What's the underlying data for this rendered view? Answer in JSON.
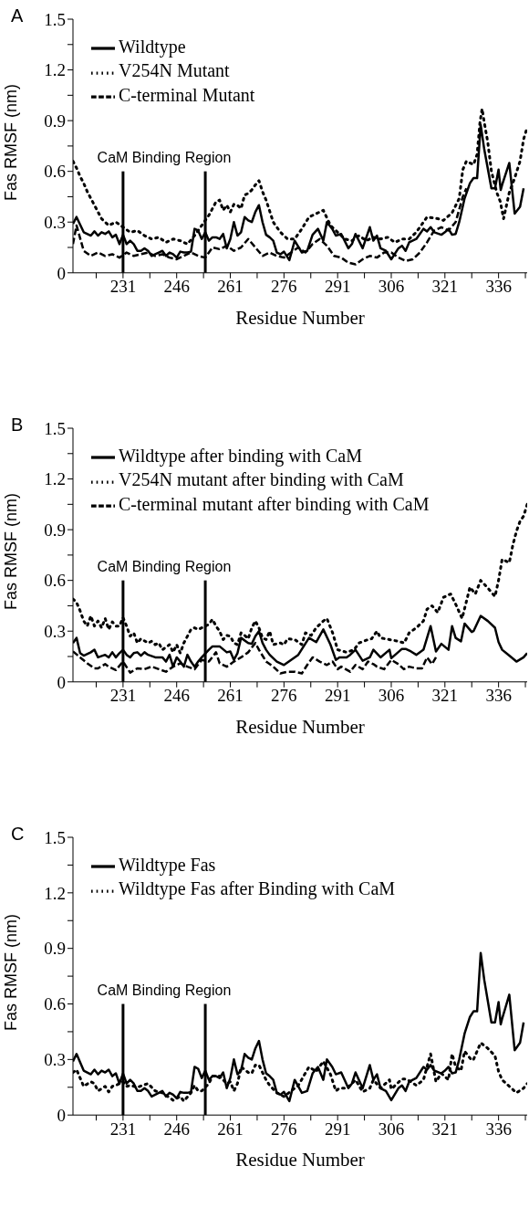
{
  "chart_data": [
    {
      "type": "line",
      "title": "A",
      "xlabel": "Residue Number",
      "ylabel": "Fas RMSF (nm)",
      "xlim": [
        217,
        344
      ],
      "ylim": [
        0,
        1.5
      ],
      "xticks": [
        {
          "value": 223.5,
          "label": null
        },
        231,
        {
          "value": 238.5,
          "label": null
        },
        246,
        {
          "value": 253.5,
          "label": null
        },
        261,
        {
          "value": 268.5,
          "label": null
        },
        276,
        {
          "value": 283.5,
          "label": null
        },
        291,
        {
          "value": 298.5,
          "label": null
        },
        306,
        {
          "value": 313.5,
          "label": null
        },
        321,
        {
          "value": 328.5,
          "label": null
        },
        336,
        {
          "value": 343.5,
          "label": null
        }
      ],
      "yticks": [
        0,
        {
          "value": 0.15,
          "label": null
        },
        0.3,
        {
          "value": 0.45,
          "label": null
        },
        0.6,
        {
          "value": 0.75,
          "label": null
        },
        0.9,
        {
          "value": 1.05,
          "label": null
        },
        1.2,
        {
          "value": 1.35,
          "label": null
        },
        1.5
      ],
      "legend": "top left",
      "grid": false,
      "marker": "none",
      "ref_lines": [
        {
          "axis": "x",
          "value": 231,
          "color": "#000000"
        },
        {
          "axis": "x",
          "value": 254,
          "color": "#000000"
        }
      ],
      "annotations": [
        "CaM Binding Region"
      ],
      "series": [
        {
          "name": "Wildtype",
          "color": "#000000",
          "line_style": "solid",
          "x": [
            217,
            218,
            220,
            222,
            223,
            224,
            225,
            226,
            227,
            228,
            229,
            230,
            231,
            232,
            233,
            234,
            235,
            236,
            237,
            238,
            239,
            240,
            241,
            242,
            243,
            244,
            245,
            246,
            247,
            248,
            249,
            250,
            251,
            252,
            253,
            254,
            255,
            256,
            257,
            258,
            259,
            260,
            261,
            262,
            263,
            264,
            265,
            266,
            267,
            268,
            269,
            270,
            271,
            272,
            273,
            274,
            275,
            276,
            277.5,
            279,
            281,
            282.5,
            284,
            285.5,
            287,
            288,
            289.5,
            290.5,
            292,
            294,
            295,
            296,
            298,
            300,
            301,
            302,
            303,
            304.5,
            306,
            308,
            309,
            310,
            311,
            313,
            315,
            316,
            317,
            318,
            320,
            321,
            322,
            323,
            324,
            325,
            326.5,
            328,
            329,
            330,
            331,
            332,
            334,
            335,
            336,
            336.6,
            337,
            339,
            340.5,
            342,
            343
          ],
          "values": [
            0.29,
            0.33,
            0.24,
            0.22,
            0.245,
            0.22,
            0.24,
            0.23,
            0.245,
            0.21,
            0.225,
            0.17,
            0.225,
            0.17,
            0.19,
            0.17,
            0.13,
            0.13,
            0.145,
            0.13,
            0.1,
            0.11,
            0.12,
            0.13,
            0.1,
            0.12,
            0.11,
            0.09,
            0.125,
            0.12,
            0.12,
            0.125,
            0.26,
            0.25,
            0.2,
            0.24,
            0.19,
            0.21,
            0.21,
            0.2,
            0.23,
            0.145,
            0.2,
            0.3,
            0.22,
            0.24,
            0.33,
            0.31,
            0.3,
            0.36,
            0.4,
            0.3,
            0.225,
            0.21,
            0.19,
            0.12,
            0.11,
            0.125,
            0.075,
            0.19,
            0.12,
            0.13,
            0.225,
            0.26,
            0.19,
            0.3,
            0.26,
            0.22,
            0.23,
            0.145,
            0.17,
            0.23,
            0.145,
            0.27,
            0.19,
            0.22,
            0.145,
            0.13,
            0.08,
            0.145,
            0.16,
            0.13,
            0.18,
            0.2,
            0.26,
            0.245,
            0.27,
            0.24,
            0.225,
            0.24,
            0.26,
            0.225,
            0.23,
            0.3,
            0.44,
            0.53,
            0.56,
            0.56,
            0.875,
            0.73,
            0.5,
            0.5,
            0.61,
            0.49,
            0.52,
            0.65,
            0.35,
            0.39,
            0.5
          ]
        },
        {
          "name": "V254N Mutant",
          "color": "#000000",
          "line_style": "dotted",
          "x": [
            217,
            218,
            219,
            220,
            221,
            222,
            223,
            224,
            225,
            227,
            229,
            231,
            233,
            235,
            237,
            239,
            241,
            243,
            245,
            247,
            249,
            251,
            253,
            255,
            256,
            257,
            258,
            259,
            260,
            261,
            262,
            263,
            264,
            265,
            266,
            267,
            268,
            269,
            270,
            271,
            273,
            275,
            277,
            279,
            281,
            283,
            285,
            287,
            289,
            291,
            293,
            295,
            297,
            299,
            301,
            303,
            305,
            307,
            309,
            311,
            313,
            316,
            319,
            320.6,
            323,
            325,
            326,
            327,
            329,
            330,
            330.8,
            331.4,
            332,
            333,
            334,
            335.5,
            336.5,
            337.4,
            339,
            340.5,
            342,
            343,
            344
          ],
          "values": [
            0.66,
            0.62,
            0.57,
            0.53,
            0.48,
            0.44,
            0.4,
            0.36,
            0.32,
            0.28,
            0.3,
            0.27,
            0.24,
            0.25,
            0.22,
            0.2,
            0.21,
            0.18,
            0.2,
            0.19,
            0.17,
            0.22,
            0.28,
            0.34,
            0.38,
            0.42,
            0.43,
            0.37,
            0.4,
            0.36,
            0.405,
            0.4,
            0.38,
            0.46,
            0.47,
            0.49,
            0.52,
            0.545,
            0.48,
            0.43,
            0.3,
            0.24,
            0.2,
            0.2,
            0.26,
            0.33,
            0.35,
            0.37,
            0.28,
            0.24,
            0.2,
            0.19,
            0.22,
            0.19,
            0.21,
            0.2,
            0.21,
            0.18,
            0.2,
            0.2,
            0.24,
            0.33,
            0.32,
            0.31,
            0.355,
            0.44,
            0.61,
            0.66,
            0.64,
            0.7,
            0.89,
            0.97,
            0.89,
            0.77,
            0.6,
            0.475,
            0.42,
            0.32,
            0.475,
            0.56,
            0.66,
            0.79,
            0.86
          ]
        },
        {
          "name": "C-terminal Mutant",
          "color": "#000000",
          "line_style": "dashed",
          "x": [
            217,
            218,
            220,
            222,
            224,
            226,
            228,
            230,
            232,
            234,
            236,
            238,
            240,
            242,
            244,
            246,
            248,
            250,
            252,
            254,
            256,
            258,
            260,
            262,
            264,
            266,
            268,
            270,
            272,
            274,
            276,
            278,
            280,
            282,
            284,
            286,
            288,
            290,
            292,
            294,
            296,
            298,
            300,
            302,
            304,
            306,
            308,
            310,
            312,
            314,
            316,
            318,
            320,
            322,
            324,
            326,
            327
          ],
          "values": [
            0.17,
            0.28,
            0.13,
            0.1,
            0.12,
            0.1,
            0.11,
            0.09,
            0.12,
            0.1,
            0.11,
            0.12,
            0.1,
            0.11,
            0.09,
            0.08,
            0.1,
            0.12,
            0.1,
            0.09,
            0.15,
            0.14,
            0.16,
            0.13,
            0.15,
            0.2,
            0.15,
            0.1,
            0.12,
            0.1,
            0.09,
            0.12,
            0.15,
            0.12,
            0.17,
            0.2,
            0.16,
            0.1,
            0.09,
            0.06,
            0.05,
            0.08,
            0.1,
            0.09,
            0.12,
            0.12,
            0.09,
            0.07,
            0.08,
            0.12,
            0.18,
            0.25,
            0.27,
            0.25,
            0.3,
            0.45,
            0.5
          ]
        }
      ]
    },
    {
      "type": "line",
      "title": "B",
      "xlabel": "Residue Number",
      "ylabel": "Fas RMSF (nm)",
      "xlim": [
        217,
        344
      ],
      "ylim": [
        0,
        1.5
      ],
      "xticks": [
        {
          "value": 223.5,
          "label": null
        },
        231,
        {
          "value": 238.5,
          "label": null
        },
        246,
        {
          "value": 253.5,
          "label": null
        },
        261,
        {
          "value": 268.5,
          "label": null
        },
        276,
        {
          "value": 283.5,
          "label": null
        },
        291,
        {
          "value": 298.5,
          "label": null
        },
        306,
        {
          "value": 313.5,
          "label": null
        },
        321,
        {
          "value": 328.5,
          "label": null
        },
        336,
        {
          "value": 343.5,
          "label": null
        }
      ],
      "yticks": [
        0,
        {
          "value": 0.15,
          "label": null
        },
        0.3,
        {
          "value": 0.45,
          "label": null
        },
        0.6,
        {
          "value": 0.75,
          "label": null
        },
        0.9,
        {
          "value": 1.05,
          "label": null
        },
        1.2,
        {
          "value": 1.35,
          "label": null
        },
        1.5
      ],
      "legend": "top left",
      "grid": false,
      "marker": "none",
      "ref_lines": [
        {
          "axis": "x",
          "value": 231,
          "color": "#000000"
        },
        {
          "axis": "x",
          "value": 254,
          "color": "#000000"
        }
      ],
      "annotations": [
        "CaM Binding Region"
      ],
      "series": [
        {
          "name": "Wildtype after binding with CaM",
          "color": "#000000",
          "line_style": "solid",
          "x": [
            217,
            218,
            219,
            220,
            222,
            223,
            224,
            226,
            227,
            228,
            229,
            230,
            231,
            232,
            233,
            234,
            235,
            236,
            237,
            238,
            240,
            242,
            243,
            244,
            245,
            246,
            247,
            248,
            249,
            250,
            251,
            252,
            253,
            255,
            256,
            258,
            260,
            261,
            262,
            263,
            264,
            266,
            267,
            268,
            269,
            270,
            271,
            272,
            274,
            276,
            278,
            280,
            283,
            285,
            287,
            289,
            290.5,
            291.5,
            293.5,
            294.5,
            296,
            298,
            300,
            301,
            303,
            305.5,
            306,
            309,
            310,
            311.5,
            313,
            315,
            317,
            318.5,
            320,
            322,
            323,
            324,
            325.5,
            326.5,
            328.5,
            329,
            331,
            333,
            335,
            336,
            337,
            339,
            341,
            343,
            344
          ],
          "values": [
            0.23,
            0.26,
            0.17,
            0.155,
            0.175,
            0.19,
            0.145,
            0.16,
            0.145,
            0.175,
            0.145,
            0.17,
            0.19,
            0.16,
            0.145,
            0.17,
            0.175,
            0.155,
            0.175,
            0.16,
            0.145,
            0.145,
            0.12,
            0.16,
            0.09,
            0.145,
            0.12,
            0.09,
            0.16,
            0.12,
            0.09,
            0.12,
            0.145,
            0.19,
            0.21,
            0.21,
            0.175,
            0.18,
            0.13,
            0.17,
            0.26,
            0.23,
            0.225,
            0.27,
            0.3,
            0.23,
            0.19,
            0.16,
            0.12,
            0.1,
            0.13,
            0.16,
            0.26,
            0.235,
            0.31,
            0.22,
            0.13,
            0.145,
            0.145,
            0.16,
            0.19,
            0.125,
            0.145,
            0.19,
            0.145,
            0.19,
            0.14,
            0.195,
            0.195,
            0.18,
            0.16,
            0.19,
            0.33,
            0.18,
            0.225,
            0.19,
            0.33,
            0.26,
            0.24,
            0.345,
            0.295,
            0.3,
            0.39,
            0.36,
            0.32,
            0.235,
            0.19,
            0.155,
            0.12,
            0.145,
            0.17
          ]
        },
        {
          "name": "V254N mutant after binding with CaM",
          "color": "#000000",
          "line_style": "dotted",
          "x": [
            217,
            218,
            219,
            220,
            221,
            222,
            223,
            224,
            225,
            226,
            227,
            228,
            229,
            230,
            231,
            232,
            233,
            234,
            235,
            236,
            238,
            239,
            240,
            241,
            242,
            244,
            245,
            246,
            247,
            248,
            250,
            251,
            252,
            253,
            255,
            256,
            257,
            258,
            259,
            260,
            261,
            262,
            263,
            264,
            265,
            266,
            267,
            268,
            269,
            270,
            271,
            272,
            273,
            275,
            276,
            277,
            279,
            281,
            282,
            283.6,
            285,
            287,
            288,
            289.6,
            291,
            293.5,
            295.6,
            297,
            299.5,
            300.5,
            302,
            303,
            305.5,
            308,
            309.6,
            311,
            313,
            315,
            316,
            317.4,
            319,
            320.6,
            322.6,
            324,
            325.8,
            327,
            328,
            329.5,
            331,
            333,
            335,
            336,
            337,
            339,
            340,
            341,
            342,
            343,
            344
          ],
          "values": [
            0.49,
            0.47,
            0.42,
            0.36,
            0.33,
            0.39,
            0.33,
            0.36,
            0.32,
            0.375,
            0.31,
            0.355,
            0.33,
            0.33,
            0.38,
            0.33,
            0.27,
            0.29,
            0.23,
            0.255,
            0.23,
            0.24,
            0.22,
            0.23,
            0.19,
            0.22,
            0.175,
            0.22,
            0.17,
            0.23,
            0.31,
            0.32,
            0.31,
            0.32,
            0.34,
            0.37,
            0.33,
            0.3,
            0.25,
            0.275,
            0.27,
            0.23,
            0.22,
            0.29,
            0.275,
            0.255,
            0.32,
            0.36,
            0.32,
            0.26,
            0.25,
            0.3,
            0.22,
            0.23,
            0.22,
            0.255,
            0.25,
            0.22,
            0.29,
            0.275,
            0.32,
            0.36,
            0.375,
            0.29,
            0.19,
            0.175,
            0.19,
            0.23,
            0.25,
            0.255,
            0.3,
            0.26,
            0.25,
            0.24,
            0.23,
            0.29,
            0.32,
            0.36,
            0.43,
            0.45,
            0.41,
            0.5,
            0.52,
            0.46,
            0.375,
            0.475,
            0.56,
            0.52,
            0.6,
            0.555,
            0.505,
            0.6,
            0.725,
            0.705,
            0.81,
            0.89,
            0.95,
            0.98,
            1.05
          ]
        },
        {
          "name": "C-terminal mutant after binding with CaM",
          "color": "#000000",
          "line_style": "dashed",
          "x": [
            217,
            219,
            221,
            223,
            224,
            226,
            227,
            229,
            231,
            233,
            235,
            237,
            239,
            241,
            243,
            245,
            247,
            249,
            251,
            253,
            255,
            257,
            258,
            260,
            262,
            264,
            266,
            268,
            269,
            271,
            273,
            275,
            277,
            279,
            281,
            282.5,
            284,
            286,
            288,
            289.6,
            291,
            292,
            294.5,
            296,
            298,
            299.5,
            301,
            302,
            304,
            306,
            308,
            309.5,
            311,
            313,
            314.6,
            316,
            317.4,
            318.5
          ],
          "values": [
            0.18,
            0.145,
            0.11,
            0.08,
            0.08,
            0.105,
            0.09,
            0.07,
            0.12,
            0.055,
            0.08,
            0.075,
            0.09,
            0.075,
            0.06,
            0.09,
            0.11,
            0.09,
            0.075,
            0.13,
            0.12,
            0.175,
            0.11,
            0.09,
            0.12,
            0.145,
            0.175,
            0.23,
            0.19,
            0.12,
            0.09,
            0.05,
            0.06,
            0.06,
            0.05,
            0.1,
            0.145,
            0.12,
            0.1,
            0.12,
            0.075,
            0.09,
            0.06,
            0.1,
            0.075,
            0.12,
            0.105,
            0.09,
            0.075,
            0.13,
            0.105,
            0.075,
            0.09,
            0.08,
            0.08,
            0.145,
            0.105,
            0.145
          ]
        }
      ]
    },
    {
      "type": "line",
      "title": "C",
      "xlabel": "Residue Number",
      "ylabel": "Fas RMSF (nm)",
      "xlim": [
        217,
        344
      ],
      "ylim": [
        0,
        1.5
      ],
      "xticks": [
        {
          "value": 223.5,
          "label": null
        },
        231,
        {
          "value": 238.5,
          "label": null
        },
        246,
        {
          "value": 253.5,
          "label": null
        },
        261,
        {
          "value": 268.5,
          "label": null
        },
        276,
        {
          "value": 283.5,
          "label": null
        },
        291,
        {
          "value": 298.5,
          "label": null
        },
        306,
        {
          "value": 313.5,
          "label": null
        },
        321,
        {
          "value": 328.5,
          "label": null
        },
        336,
        {
          "value": 343.5,
          "label": null
        }
      ],
      "yticks": [
        0,
        {
          "value": 0.15,
          "label": null
        },
        0.3,
        {
          "value": 0.45,
          "label": null
        },
        0.6,
        {
          "value": 0.75,
          "label": null
        },
        0.9,
        {
          "value": 1.05,
          "label": null
        },
        1.2,
        {
          "value": 1.35,
          "label": null
        },
        1.5
      ],
      "legend": "top left",
      "grid": false,
      "marker": "none",
      "ref_lines": [
        {
          "axis": "x",
          "value": 231,
          "color": "#000000"
        },
        {
          "axis": "x",
          "value": 254,
          "color": "#000000"
        }
      ],
      "annotations": [
        "CaM Binding Region"
      ],
      "series": [
        {
          "name": "Wildtype Fas",
          "color": "#000000",
          "line_style": "solid",
          "x": [
            217,
            218,
            220,
            222,
            223,
            224,
            225,
            226,
            227,
            228,
            229,
            230,
            231,
            232,
            233,
            234,
            235,
            236,
            237,
            238,
            239,
            240,
            241,
            242,
            243,
            244,
            245,
            246,
            247,
            248,
            249,
            250,
            251,
            252,
            253,
            254,
            255,
            256,
            257,
            258,
            259,
            260,
            261,
            262,
            263,
            264,
            265,
            266,
            267,
            268,
            269,
            270,
            271,
            272,
            273,
            274,
            275,
            276,
            277.5,
            279,
            281,
            282.5,
            284,
            285.5,
            287,
            288,
            289.5,
            290.5,
            292,
            294,
            295,
            296,
            298,
            300,
            301,
            302,
            303,
            304.5,
            306,
            308,
            309,
            310,
            311,
            313,
            315,
            316,
            317,
            318,
            320,
            321,
            322,
            323,
            324,
            325,
            326.5,
            328,
            329,
            330,
            331,
            332,
            334,
            335,
            336,
            336.6,
            337,
            339,
            340.5,
            342,
            343
          ],
          "values": [
            0.29,
            0.33,
            0.24,
            0.22,
            0.245,
            0.22,
            0.24,
            0.23,
            0.245,
            0.21,
            0.225,
            0.17,
            0.225,
            0.17,
            0.19,
            0.17,
            0.13,
            0.13,
            0.145,
            0.13,
            0.1,
            0.11,
            0.12,
            0.13,
            0.1,
            0.12,
            0.11,
            0.09,
            0.125,
            0.12,
            0.12,
            0.125,
            0.26,
            0.25,
            0.2,
            0.24,
            0.19,
            0.21,
            0.21,
            0.2,
            0.23,
            0.145,
            0.2,
            0.3,
            0.22,
            0.24,
            0.33,
            0.31,
            0.3,
            0.36,
            0.4,
            0.3,
            0.225,
            0.21,
            0.19,
            0.12,
            0.11,
            0.125,
            0.075,
            0.19,
            0.12,
            0.13,
            0.225,
            0.26,
            0.19,
            0.3,
            0.26,
            0.22,
            0.23,
            0.145,
            0.17,
            0.23,
            0.145,
            0.27,
            0.19,
            0.22,
            0.145,
            0.13,
            0.08,
            0.145,
            0.16,
            0.13,
            0.18,
            0.2,
            0.26,
            0.245,
            0.27,
            0.24,
            0.225,
            0.24,
            0.26,
            0.225,
            0.23,
            0.3,
            0.44,
            0.53,
            0.56,
            0.56,
            0.875,
            0.73,
            0.5,
            0.5,
            0.61,
            0.49,
            0.52,
            0.65,
            0.35,
            0.39,
            0.5
          ]
        },
        {
          "name": "Wildtype Fas after Binding with CaM",
          "color": "#000000",
          "line_style": "dotted",
          "x": [
            217,
            218,
            219,
            220,
            222,
            223,
            224,
            226,
            227,
            228,
            229,
            231,
            232,
            233,
            235,
            238,
            239,
            240,
            242,
            245,
            247,
            248,
            250,
            251,
            252,
            253,
            255,
            256,
            258,
            260,
            261,
            262,
            263,
            264,
            266,
            267,
            268,
            269,
            270,
            271,
            272,
            274,
            276,
            278,
            280,
            283,
            285,
            287,
            289,
            290.5,
            291.5,
            293.5,
            294.5,
            296,
            298,
            300,
            301,
            303,
            305.5,
            306,
            309,
            310,
            311.5,
            313,
            315,
            317,
            318.5,
            320,
            322,
            323,
            324,
            325.5,
            326.5,
            328.5,
            329,
            331,
            333,
            335,
            336,
            337,
            339,
            341,
            343,
            344
          ],
          "values": [
            0.23,
            0.245,
            0.2,
            0.155,
            0.18,
            0.17,
            0.13,
            0.155,
            0.125,
            0.155,
            0.16,
            0.18,
            0.155,
            0.16,
            0.15,
            0.17,
            0.15,
            0.13,
            0.12,
            0.08,
            0.1,
            0.075,
            0.12,
            0.16,
            0.13,
            0.13,
            0.17,
            0.21,
            0.21,
            0.17,
            0.18,
            0.13,
            0.17,
            0.26,
            0.23,
            0.225,
            0.27,
            0.27,
            0.23,
            0.19,
            0.16,
            0.12,
            0.1,
            0.13,
            0.16,
            0.26,
            0.235,
            0.29,
            0.22,
            0.13,
            0.145,
            0.145,
            0.16,
            0.19,
            0.125,
            0.145,
            0.19,
            0.145,
            0.19,
            0.14,
            0.195,
            0.195,
            0.18,
            0.16,
            0.19,
            0.33,
            0.18,
            0.225,
            0.19,
            0.33,
            0.26,
            0.24,
            0.345,
            0.295,
            0.3,
            0.39,
            0.36,
            0.32,
            0.235,
            0.19,
            0.155,
            0.12,
            0.145,
            0.17
          ]
        }
      ]
    }
  ]
}
